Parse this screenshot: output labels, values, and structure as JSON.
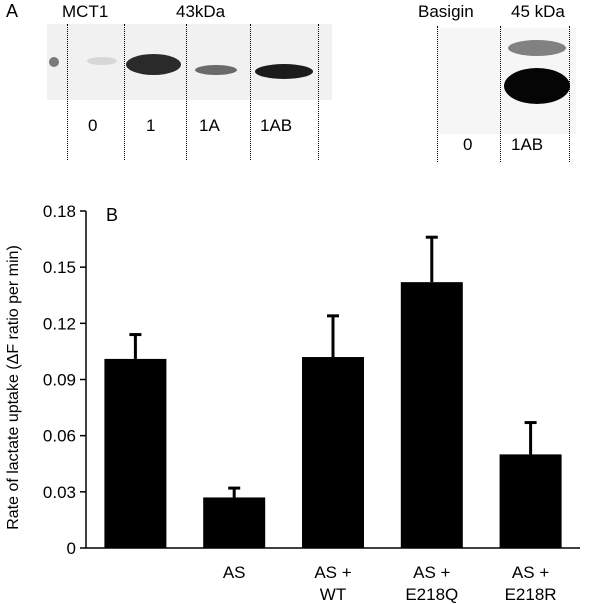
{
  "panel_a": {
    "letter": "A",
    "mct1_blot": {
      "title": "MCT1",
      "size": "43kDa",
      "lanes": [
        "0",
        "1",
        "1A",
        "1AB"
      ],
      "band_intensity": [
        0.08,
        0.85,
        0.45,
        0.9
      ]
    },
    "basigin_blot": {
      "title": "Basigin",
      "size": "45 kDa",
      "lanes": [
        "0",
        "1AB"
      ],
      "band_intensity": [
        0.0,
        1.0
      ]
    }
  },
  "chart_data": {
    "type": "bar",
    "panel_letter": "B",
    "ylabel": "Rate of  lactate uptake (ΔF ratio per min)",
    "ylim": [
      0,
      0.18
    ],
    "yticks": [
      "0",
      "0.03",
      "0.06",
      "0.09",
      "0.12",
      "0.15",
      "0.18"
    ],
    "categories": [
      [
        ""
      ],
      [
        "AS"
      ],
      [
        "AS +",
        "WT"
      ],
      [
        "AS +",
        "E218Q"
      ],
      [
        "AS +",
        "E218R"
      ]
    ],
    "values": [
      0.101,
      0.027,
      0.102,
      0.142,
      0.05
    ],
    "errors": [
      0.013,
      0.005,
      0.022,
      0.024,
      0.017
    ],
    "bar_color": "#000000",
    "grid": false
  }
}
